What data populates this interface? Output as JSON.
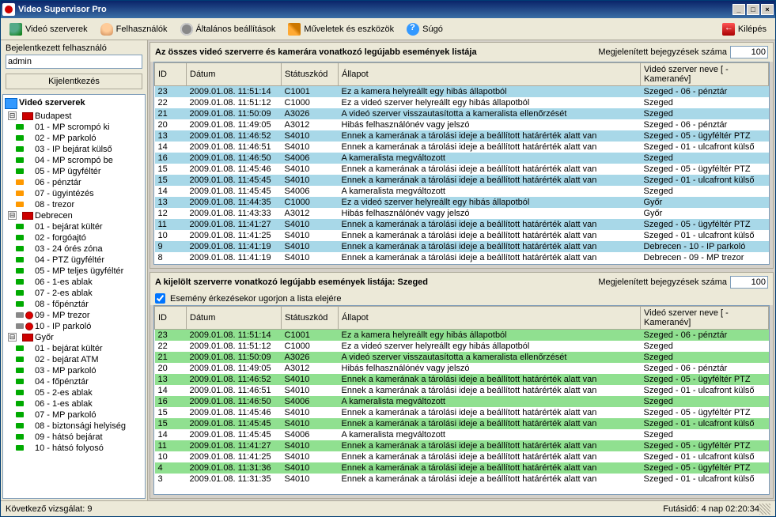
{
  "window_title": "Video Supervisor Pro",
  "toolbar": {
    "servers": "Videó szerverek",
    "users": "Felhasználók",
    "settings": "Általános beállítások",
    "tools": "Műveletek és eszközök",
    "help": "Súgó",
    "exit": "Kilépés"
  },
  "login": {
    "label": "Bejelentkezett felhasználó",
    "user": "admin",
    "logout": "Kijelentkezés"
  },
  "tree": {
    "root": "Videó szerverek",
    "groups": [
      {
        "name": "Budapest",
        "items": [
          {
            "l": "01 - MP scrompó ki",
            "c": "g"
          },
          {
            "l": "02 - MP parkoló",
            "c": "g"
          },
          {
            "l": "03 - IP bejárat külső",
            "c": "g"
          },
          {
            "l": "04 - MP scrompó be",
            "c": "g"
          },
          {
            "l": "05 - MP ügyféltér",
            "c": "g"
          },
          {
            "l": "06 - pénztár",
            "c": "o"
          },
          {
            "l": "07 - ügyintézés",
            "c": "o"
          },
          {
            "l": "08 - trezor",
            "c": "o"
          }
        ]
      },
      {
        "name": "Debrecen",
        "items": [
          {
            "l": "01 - bejárat kültér",
            "c": "g"
          },
          {
            "l": "02 - forgóajtó",
            "c": "g"
          },
          {
            "l": "03 - 24 órés zóna",
            "c": "g"
          },
          {
            "l": "04 - PTZ ügyféltér",
            "c": "g"
          },
          {
            "l": "05 - MP teljes ügyféltér",
            "c": "g"
          },
          {
            "l": "06 - 1-es ablak",
            "c": "g"
          },
          {
            "l": "07 - 2-es ablak",
            "c": "g"
          },
          {
            "l": "08 - főpénztár",
            "c": "g"
          },
          {
            "l": "09 - MP trezor",
            "c": "b",
            "r": true
          },
          {
            "l": "10 - IP parkoló",
            "c": "b",
            "r": true
          }
        ]
      },
      {
        "name": "Győr",
        "items": [
          {
            "l": "01 - bejárat kültér",
            "c": "g"
          },
          {
            "l": "02 - bejárat ATM",
            "c": "g"
          },
          {
            "l": "03 - MP parkoló",
            "c": "g"
          },
          {
            "l": "04 - főpénztár",
            "c": "g"
          },
          {
            "l": "05 - 2-es ablak",
            "c": "g"
          },
          {
            "l": "06 - 1-es ablak",
            "c": "g"
          },
          {
            "l": "07 - MP parkoló",
            "c": "g"
          },
          {
            "l": "08 - biztonsági helyiség",
            "c": "g"
          },
          {
            "l": "09 - hátsó bejárat",
            "c": "g"
          },
          {
            "l": "10 - hátsó folyosó",
            "c": "g"
          }
        ]
      }
    ]
  },
  "top_panel": {
    "title": "Az összes videó szerverre és kamerára vonatkozó legújabb események listája",
    "count_label": "Megjelenített bejegyzések száma",
    "count": "100",
    "columns": {
      "id": "ID",
      "date": "Dátum",
      "code": "Státuszkód",
      "state": "Állapot",
      "server": "Videó szerver neve [ - Kameranév]"
    },
    "rows": [
      {
        "id": "23",
        "d": "2009.01.08. 11:51:14",
        "c": "C1001",
        "s": "Ez a kamera helyreállt egy hibás állapotból",
        "v": "Szeged - 06 - pénztár",
        "hl": true
      },
      {
        "id": "22",
        "d": "2009.01.08. 11:51:12",
        "c": "C1000",
        "s": "Ez a videó szerver helyreállt egy hibás állapotból",
        "v": "Szeged"
      },
      {
        "id": "21",
        "d": "2009.01.08. 11:50:09",
        "c": "A3026",
        "s": "A videó szerver visszautasította a kameralista ellenőrzését",
        "v": "Szeged",
        "hl": true
      },
      {
        "id": "20",
        "d": "2009.01.08. 11:49:05",
        "c": "A3012",
        "s": "Hibás felhasználónév vagy jelszó",
        "v": "Szeged - 06 - pénztár"
      },
      {
        "id": "13",
        "d": "2009.01.08. 11:46:52",
        "c": "S4010",
        "s": "Ennek a kamerának a tárolási ideje a beállított határérték alatt van",
        "v": "Szeged - 05 - ügyféltér PTZ",
        "hl": true
      },
      {
        "id": "14",
        "d": "2009.01.08. 11:46:51",
        "c": "S4010",
        "s": "Ennek a kamerának a tárolási ideje a beállított határérték alatt van",
        "v": "Szeged - 01 - ulcafront külső"
      },
      {
        "id": "16",
        "d": "2009.01.08. 11:46:50",
        "c": "S4006",
        "s": "A kameralista megváltozott",
        "v": "Szeged",
        "hl": true
      },
      {
        "id": "15",
        "d": "2009.01.08. 11:45:46",
        "c": "S4010",
        "s": "Ennek a kamerának a tárolási ideje a beállított határérték alatt van",
        "v": "Szeged - 05 - ügyféltér PTZ"
      },
      {
        "id": "15",
        "d": "2009.01.08. 11:45:45",
        "c": "S4010",
        "s": "Ennek a kamerának a tárolási ideje a beállított határérték alatt van",
        "v": "Szeged - 01 - ulcafront külső",
        "hl": true
      },
      {
        "id": "14",
        "d": "2009.01.08. 11:45:45",
        "c": "S4006",
        "s": "A kameralista megváltozott",
        "v": "Szeged"
      },
      {
        "id": "13",
        "d": "2009.01.08. 11:44:35",
        "c": "C1000",
        "s": "Ez a videó szerver helyreállt egy hibás állapotból",
        "v": "Győr",
        "hl": true
      },
      {
        "id": "12",
        "d": "2009.01.08. 11:43:33",
        "c": "A3012",
        "s": "Hibás felhasználónév vagy jelszó",
        "v": "Győr"
      },
      {
        "id": "11",
        "d": "2009.01.08. 11:41:27",
        "c": "S4010",
        "s": "Ennek a kamerának a tárolási ideje a beállított határérték alatt van",
        "v": "Szeged - 05 - ügyféltér PTZ",
        "hl": true
      },
      {
        "id": "10",
        "d": "2009.01.08. 11:41:25",
        "c": "S4010",
        "s": "Ennek a kamerának a tárolási ideje a beállított határérték alatt van",
        "v": "Szeged - 01 - ulcafront külső"
      },
      {
        "id": "9",
        "d": "2009.01.08. 11:41:19",
        "c": "S4010",
        "s": "Ennek a kamerának a tárolási ideje a beállított határérték alatt van",
        "v": "Debrecen - 10 - IP parkoló",
        "hl": true
      },
      {
        "id": "8",
        "d": "2009.01.08. 11:41:19",
        "c": "S4010",
        "s": "Ennek a kamerának a tárolási ideje a beállított határérték alatt van",
        "v": "Debrecen - 09 - MP trezor"
      }
    ]
  },
  "bot_panel": {
    "title": "A kijelölt szerverre vonatkozó legújabb események listája: Szeged",
    "checkbox_label": "Esemény érkezésekor ugorjon a lista elejére",
    "count_label": "Megjelenített bejegyzések száma",
    "count": "100",
    "columns": {
      "id": "ID",
      "date": "Dátum",
      "code": "Státuszkód",
      "state": "Állapot",
      "server": "Videó szerver neve [ - Kameranév]"
    },
    "rows": [
      {
        "id": "23",
        "d": "2009.01.08. 11:51:14",
        "c": "C1001",
        "s": "Ez a kamera helyreállt egy hibás állapotból",
        "v": "Szeged - 06 - pénztár",
        "hl": true
      },
      {
        "id": "22",
        "d": "2009.01.08. 11:51:12",
        "c": "C1000",
        "s": "Ez a videó szerver helyreállt egy hibás állapotból",
        "v": "Szeged"
      },
      {
        "id": "21",
        "d": "2009.01.08. 11:50:09",
        "c": "A3026",
        "s": "A videó szerver visszautasította a kameralista ellenőrzését",
        "v": "Szeged",
        "hl": true
      },
      {
        "id": "20",
        "d": "2009.01.08. 11:49:05",
        "c": "A3012",
        "s": "Hibás felhasználónév vagy jelszó",
        "v": "Szeged - 06 - pénztár"
      },
      {
        "id": "13",
        "d": "2009.01.08. 11:46:52",
        "c": "S4010",
        "s": "Ennek a kamerának a tárolási ideje a beállított határérték alatt van",
        "v": "Szeged - 05 - ügyféltér PTZ",
        "hl": true
      },
      {
        "id": "14",
        "d": "2009.01.08. 11:46:51",
        "c": "S4010",
        "s": "Ennek a kamerának a tárolási ideje a beállított határérték alatt van",
        "v": "Szeged - 01 - ulcafront külső"
      },
      {
        "id": "16",
        "d": "2009.01.08. 11:46:50",
        "c": "S4006",
        "s": "A kameralista megváltozott",
        "v": "Szeged",
        "hl": true
      },
      {
        "id": "15",
        "d": "2009.01.08. 11:45:46",
        "c": "S4010",
        "s": "Ennek a kamerának a tárolási ideje a beállított határérték alatt van",
        "v": "Szeged - 05 - ügyféltér PTZ"
      },
      {
        "id": "15",
        "d": "2009.01.08. 11:45:45",
        "c": "S4010",
        "s": "Ennek a kamerának a tárolási ideje a beállított határérték alatt van",
        "v": "Szeged - 01 - ulcafront külső",
        "hl": true
      },
      {
        "id": "14",
        "d": "2009.01.08. 11:45:45",
        "c": "S4006",
        "s": "A kameralista megváltozott",
        "v": "Szeged"
      },
      {
        "id": "11",
        "d": "2009.01.08. 11:41:27",
        "c": "S4010",
        "s": "Ennek a kamerának a tárolási ideje a beállított határérték alatt van",
        "v": "Szeged - 05 - ügyféltér PTZ",
        "hl": true
      },
      {
        "id": "10",
        "d": "2009.01.08. 11:41:25",
        "c": "S4010",
        "s": "Ennek a kamerának a tárolási ideje a beállított határérték alatt van",
        "v": "Szeged - 01 - ulcafront külső"
      },
      {
        "id": "4",
        "d": "2009.01.08. 11:31:36",
        "c": "S4010",
        "s": "Ennek a kamerának a tárolási ideje a beállított határérték alatt van",
        "v": "Szeged - 05 - ügyféltér PTZ",
        "hl": true
      },
      {
        "id": "3",
        "d": "2009.01.08. 11:31:35",
        "c": "S4010",
        "s": "Ennek a kamerának a tárolási ideje a beállított határérték alatt van",
        "v": "Szeged - 01 - ulcafront külső"
      }
    ]
  },
  "status": {
    "left": "Következő vizsgálat: 9",
    "right": "Futásidő: 4 nap 02:20:34"
  }
}
